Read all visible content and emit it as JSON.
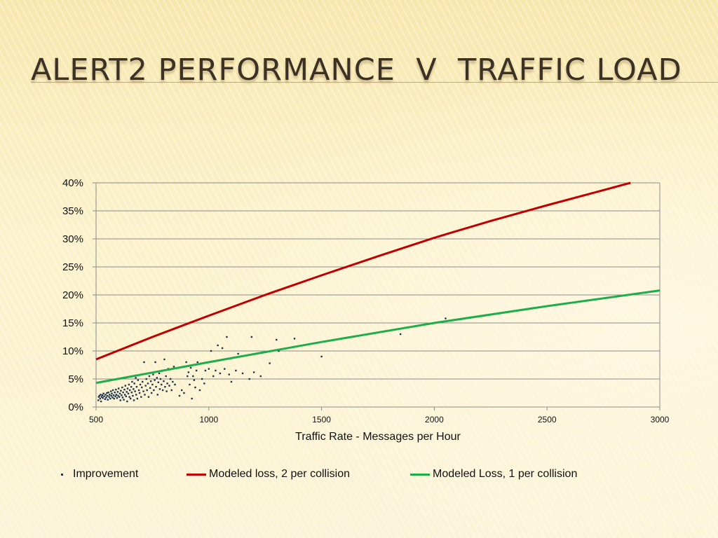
{
  "slide": {
    "title": "Alert2 Performance  v  Traffic Load"
  },
  "colors": {
    "improvement": "#1f3550",
    "loss2": "#c00000",
    "loss1": "#1fad4b",
    "grid": "#8c8c8c"
  },
  "chart_data": {
    "type": "scatter",
    "xlabel": "Traffic Rate - Messages per Hour",
    "ylabel": "",
    "xlim": [
      500,
      3000
    ],
    "ylim": [
      0,
      0.4
    ],
    "x_ticks": [
      500,
      1000,
      1500,
      2000,
      2500,
      3000
    ],
    "y_ticks": [
      "0%",
      "5%",
      "10%",
      "15%",
      "20%",
      "25%",
      "30%",
      "35%",
      "40%"
    ],
    "grid": true,
    "legend_position": "bottom",
    "series": [
      {
        "name": "Improvement",
        "kind": "scatter",
        "points": [
          [
            510,
            0.012
          ],
          [
            512,
            0.018
          ],
          [
            515,
            0.02
          ],
          [
            518,
            0.015
          ],
          [
            520,
            0.022
          ],
          [
            522,
            0.01
          ],
          [
            525,
            0.018
          ],
          [
            528,
            0.021
          ],
          [
            530,
            0.016
          ],
          [
            533,
            0.024
          ],
          [
            536,
            0.019
          ],
          [
            540,
            0.014
          ],
          [
            542,
            0.022
          ],
          [
            545,
            0.017
          ],
          [
            548,
            0.025
          ],
          [
            550,
            0.02
          ],
          [
            552,
            0.013
          ],
          [
            555,
            0.026
          ],
          [
            558,
            0.018
          ],
          [
            560,
            0.022
          ],
          [
            563,
            0.015
          ],
          [
            566,
            0.028
          ],
          [
            568,
            0.02
          ],
          [
            570,
            0.024
          ],
          [
            573,
            0.017
          ],
          [
            575,
            0.03
          ],
          [
            578,
            0.021
          ],
          [
            580,
            0.015
          ],
          [
            583,
            0.026
          ],
          [
            586,
            0.019
          ],
          [
            588,
            0.031
          ],
          [
            590,
            0.022
          ],
          [
            593,
            0.016
          ],
          [
            596,
            0.027
          ],
          [
            598,
            0.02
          ],
          [
            600,
            0.033
          ],
          [
            603,
            0.018
          ],
          [
            606,
            0.024
          ],
          [
            608,
            0.012
          ],
          [
            610,
            0.029
          ],
          [
            613,
            0.021
          ],
          [
            616,
            0.035
          ],
          [
            618,
            0.017
          ],
          [
            620,
            0.026
          ],
          [
            623,
            0.013
          ],
          [
            626,
            0.031
          ],
          [
            628,
            0.022
          ],
          [
            630,
            0.038
          ],
          [
            633,
            0.019
          ],
          [
            636,
            0.027
          ],
          [
            638,
            0.01
          ],
          [
            640,
            0.033
          ],
          [
            643,
            0.024
          ],
          [
            646,
            0.04
          ],
          [
            648,
            0.018
          ],
          [
            650,
            0.03
          ],
          [
            653,
            0.015
          ],
          [
            656,
            0.036
          ],
          [
            658,
            0.026
          ],
          [
            660,
            0.045
          ],
          [
            663,
            0.02
          ],
          [
            666,
            0.032
          ],
          [
            668,
            0.012
          ],
          [
            670,
            0.042
          ],
          [
            673,
            0.028
          ],
          [
            676,
            0.052
          ],
          [
            678,
            0.022
          ],
          [
            680,
            0.036
          ],
          [
            683,
            0.015
          ],
          [
            686,
            0.048
          ],
          [
            690,
            0.03
          ],
          [
            693,
            0.025
          ],
          [
            696,
            0.04
          ],
          [
            700,
            0.018
          ],
          [
            703,
            0.035
          ],
          [
            706,
            0.045
          ],
          [
            710,
            0.028
          ],
          [
            713,
            0.08
          ],
          [
            716,
            0.022
          ],
          [
            720,
            0.038
          ],
          [
            723,
            0.05
          ],
          [
            726,
            0.03
          ],
          [
            730,
            0.042
          ],
          [
            733,
            0.018
          ],
          [
            736,
            0.055
          ],
          [
            740,
            0.034
          ],
          [
            743,
            0.046
          ],
          [
            746,
            0.025
          ],
          [
            750,
            0.04
          ],
          [
            753,
            0.058
          ],
          [
            756,
            0.03
          ],
          [
            760,
            0.048
          ],
          [
            763,
            0.08
          ],
          [
            766,
            0.036
          ],
          [
            770,
            0.052
          ],
          [
            773,
            0.022
          ],
          [
            776,
            0.044
          ],
          [
            780,
            0.06
          ],
          [
            783,
            0.032
          ],
          [
            786,
            0.05
          ],
          [
            790,
            0.04
          ],
          [
            793,
            0.065
          ],
          [
            796,
            0.03
          ],
          [
            800,
            0.046
          ],
          [
            803,
            0.085
          ],
          [
            806,
            0.036
          ],
          [
            810,
            0.055
          ],
          [
            813,
            0.028
          ],
          [
            816,
            0.042
          ],
          [
            820,
            0.068
          ],
          [
            825,
            0.038
          ],
          [
            830,
            0.05
          ],
          [
            835,
            0.03
          ],
          [
            840,
            0.045
          ],
          [
            845,
            0.072
          ],
          [
            850,
            0.04
          ],
          [
            870,
            0.02
          ],
          [
            880,
            0.03
          ],
          [
            890,
            0.025
          ],
          [
            900,
            0.08
          ],
          [
            905,
            0.055
          ],
          [
            910,
            0.062
          ],
          [
            915,
            0.04
          ],
          [
            920,
            0.07
          ],
          [
            925,
            0.015
          ],
          [
            930,
            0.055
          ],
          [
            935,
            0.048
          ],
          [
            940,
            0.035
          ],
          [
            945,
            0.065
          ],
          [
            950,
            0.08
          ],
          [
            960,
            0.03
          ],
          [
            970,
            0.05
          ],
          [
            980,
            0.042
          ],
          [
            985,
            0.065
          ],
          [
            1000,
            0.068
          ],
          [
            1010,
            0.1
          ],
          [
            1020,
            0.055
          ],
          [
            1030,
            0.065
          ],
          [
            1040,
            0.11
          ],
          [
            1050,
            0.06
          ],
          [
            1060,
            0.105
          ],
          [
            1070,
            0.068
          ],
          [
            1080,
            0.125
          ],
          [
            1090,
            0.058
          ],
          [
            1100,
            0.045
          ],
          [
            1110,
            0.088
          ],
          [
            1120,
            0.065
          ],
          [
            1130,
            0.095
          ],
          [
            1150,
            0.06
          ],
          [
            1180,
            0.05
          ],
          [
            1190,
            0.125
          ],
          [
            1200,
            0.062
          ],
          [
            1230,
            0.055
          ],
          [
            1270,
            0.078
          ],
          [
            1300,
            0.12
          ],
          [
            1310,
            0.1
          ],
          [
            1380,
            0.122
          ],
          [
            1500,
            0.09
          ],
          [
            1850,
            0.13
          ],
          [
            2050,
            0.158
          ]
        ]
      },
      {
        "name": "Modeled loss, 2 per collision",
        "kind": "line",
        "points": [
          [
            500,
            0.085
          ],
          [
            750,
            0.125
          ],
          [
            1000,
            0.163
          ],
          [
            1250,
            0.2
          ],
          [
            1500,
            0.235
          ],
          [
            1750,
            0.269
          ],
          [
            2000,
            0.302
          ],
          [
            2250,
            0.332
          ],
          [
            2500,
            0.36
          ],
          [
            2750,
            0.387
          ],
          [
            2870,
            0.4
          ]
        ]
      },
      {
        "name": "Modeled Loss, 1 per collision",
        "kind": "line",
        "points": [
          [
            500,
            0.043
          ],
          [
            1000,
            0.08
          ],
          [
            1500,
            0.116
          ],
          [
            2000,
            0.15
          ],
          [
            2500,
            0.18
          ],
          [
            3000,
            0.208
          ]
        ]
      }
    ]
  }
}
